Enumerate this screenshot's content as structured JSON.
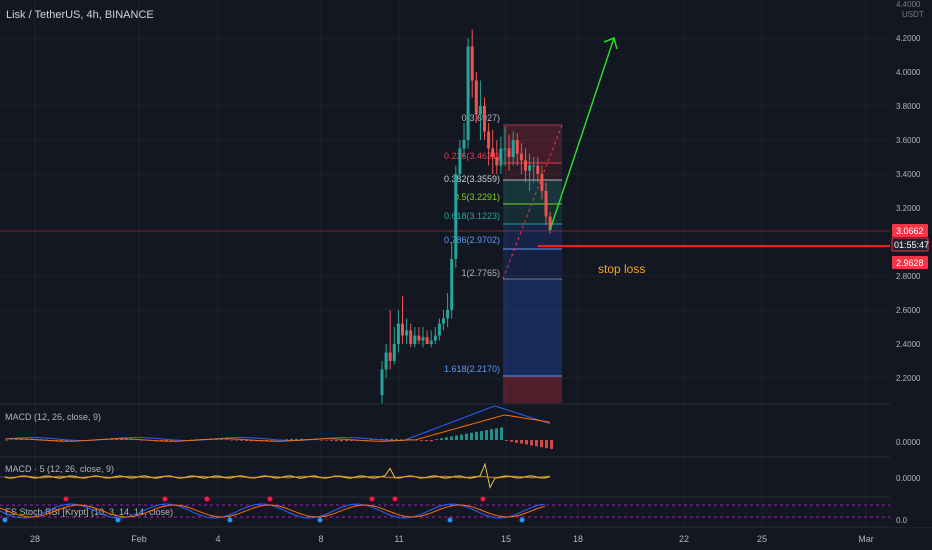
{
  "header": {
    "symbol_title": "Lisk / TetherUS, 4h, BINANCE"
  },
  "price_axis": {
    "currency_top": "4.4000",
    "currency_unit": "USDT",
    "ticks": [
      "4.2000",
      "4.0000",
      "3.8000",
      "3.6000",
      "3.4000",
      "3.2000",
      "2.8000",
      "2.6000",
      "2.4000",
      "2.2000"
    ],
    "current_price": "3.0662",
    "countdown": "01:55:47",
    "stop_price": "2.9628",
    "current_color": "#f23645",
    "stop_color": "#f23645"
  },
  "time_axis": {
    "labels": [
      "28",
      "Feb",
      "4",
      "8",
      "11",
      "15",
      "18",
      "22",
      "25",
      "Mar"
    ]
  },
  "annotations": {
    "stop_loss_text": "stop loss",
    "stop_loss_color": "#f5a623",
    "arrow_color": "#2bd92b",
    "stop_line_color": "#ff1a1a"
  },
  "fib_labels": [
    {
      "text": "0(3.6927)",
      "color": "#b2b5be"
    },
    {
      "text": "0.236(3.4631)",
      "color": "#f23645"
    },
    {
      "text": "0.382(3.3559)",
      "color": "#d1d4dc"
    },
    {
      "text": "0.5(3.2291)",
      "color": "#7ed321"
    },
    {
      "text": "0.618(3.1223)",
      "color": "#26a69a"
    },
    {
      "text": "0.786(2.9702)",
      "color": "#5b9cf6"
    },
    {
      "text": "1(2.7765)",
      "color": "#b2b5be"
    },
    {
      "text": "1.618(2.2170)",
      "color": "#5b9cf6"
    }
  ],
  "indicators": {
    "macd1_label": "MACD (12, 26, close, 9)",
    "macd1_value": "0.0000",
    "macd2_label": "MACD · 5 (12, 26, close, 9)",
    "macd2_value": "0.0000",
    "stoch_label": "ES Stoch RSI [Krypt] (10, 3, 14, 14, close)",
    "stoch_value": "0.0"
  },
  "chart_data": {
    "type": "candlestick",
    "title": "Lisk / TetherUS, 4h, BINANCE",
    "ylabel": "USDT",
    "ylim": [
      2.05,
      4.4
    ],
    "x": [
      "Feb 10 04:00",
      "Feb 10 08:00",
      "Feb 10 12:00",
      "Feb 10 16:00",
      "Feb 10 20:00",
      "Feb 11 00:00",
      "Feb 11 04:00",
      "Feb 11 08:00",
      "Feb 11 12:00",
      "Feb 11 16:00",
      "Feb 11 20:00",
      "Feb 12 00:00",
      "Feb 12 04:00",
      "Feb 12 08:00",
      "Feb 12 12:00",
      "Feb 12 16:00",
      "Feb 12 20:00",
      "Feb 13 00:00",
      "Feb 13 04:00",
      "Feb 13 08:00",
      "Feb 13 12:00",
      "Feb 13 16:00",
      "Feb 13 20:00",
      "Feb 14 00:00",
      "Feb 14 04:00",
      "Feb 14 08:00",
      "Feb 14 12:00",
      "Feb 14 16:00",
      "Feb 14 20:00",
      "Feb 15 00:00",
      "Feb 15 04:00",
      "Feb 15 08:00",
      "Feb 15 12:00",
      "Feb 15 16:00",
      "Feb 15 20:00",
      "Feb 16 00:00",
      "Feb 16 04:00",
      "Feb 16 08:00",
      "Feb 16 12:00",
      "Feb 16 16:00",
      "Feb 16 20:00",
      "Feb 17 00:00"
    ],
    "open": [
      2.1,
      2.25,
      2.35,
      2.3,
      2.4,
      2.52,
      2.45,
      2.48,
      2.4,
      2.45,
      2.42,
      2.44,
      2.4,
      2.42,
      2.45,
      2.52,
      2.55,
      2.6,
      2.9,
      3.4,
      3.55,
      3.6,
      4.15,
      3.95,
      3.75,
      3.8,
      3.65,
      3.55,
      3.5,
      3.45,
      3.55,
      3.55,
      3.5,
      3.6,
      3.52,
      3.48,
      3.42,
      3.45,
      3.45,
      3.4,
      3.3,
      3.15
    ],
    "high": [
      2.3,
      2.4,
      2.6,
      2.5,
      2.6,
      2.68,
      2.55,
      2.52,
      2.5,
      2.5,
      2.5,
      2.48,
      2.48,
      2.5,
      2.55,
      2.6,
      2.7,
      3.0,
      3.45,
      3.6,
      3.7,
      4.2,
      4.25,
      4.0,
      3.95,
      3.85,
      3.7,
      3.66,
      3.6,
      3.62,
      3.68,
      3.63,
      3.65,
      3.64,
      3.58,
      3.55,
      3.52,
      3.5,
      3.5,
      3.45,
      3.35,
      3.18
    ],
    "low": [
      2.05,
      2.2,
      2.25,
      2.28,
      2.35,
      2.4,
      2.4,
      2.38,
      2.38,
      2.4,
      2.38,
      2.4,
      2.38,
      2.4,
      2.42,
      2.48,
      2.5,
      2.55,
      2.85,
      3.35,
      3.5,
      3.55,
      3.85,
      3.7,
      3.6,
      3.6,
      3.45,
      3.4,
      3.4,
      3.4,
      3.45,
      3.42,
      3.45,
      3.45,
      3.4,
      3.35,
      3.3,
      3.35,
      3.35,
      3.25,
      3.1,
      3.05
    ],
    "close": [
      2.25,
      2.35,
      2.3,
      2.4,
      2.52,
      2.45,
      2.48,
      2.4,
      2.45,
      2.42,
      2.44,
      2.4,
      2.42,
      2.45,
      2.52,
      2.55,
      2.6,
      2.9,
      3.4,
      3.55,
      3.6,
      4.15,
      3.95,
      3.75,
      3.8,
      3.65,
      3.55,
      3.5,
      3.45,
      3.55,
      3.55,
      3.5,
      3.6,
      3.52,
      3.48,
      3.42,
      3.45,
      3.45,
      3.4,
      3.3,
      3.15,
      3.07
    ],
    "levels": {
      "current_price": 3.0662,
      "stop_loss": 2.9628
    },
    "fib_retracement": {
      "0": 3.6927,
      "0.236": 3.4631,
      "0.382": 3.3559,
      "0.5": 3.2291,
      "0.618": 3.1223,
      "0.786": 2.9702,
      "1": 2.7765,
      "1.618": 2.217
    }
  }
}
